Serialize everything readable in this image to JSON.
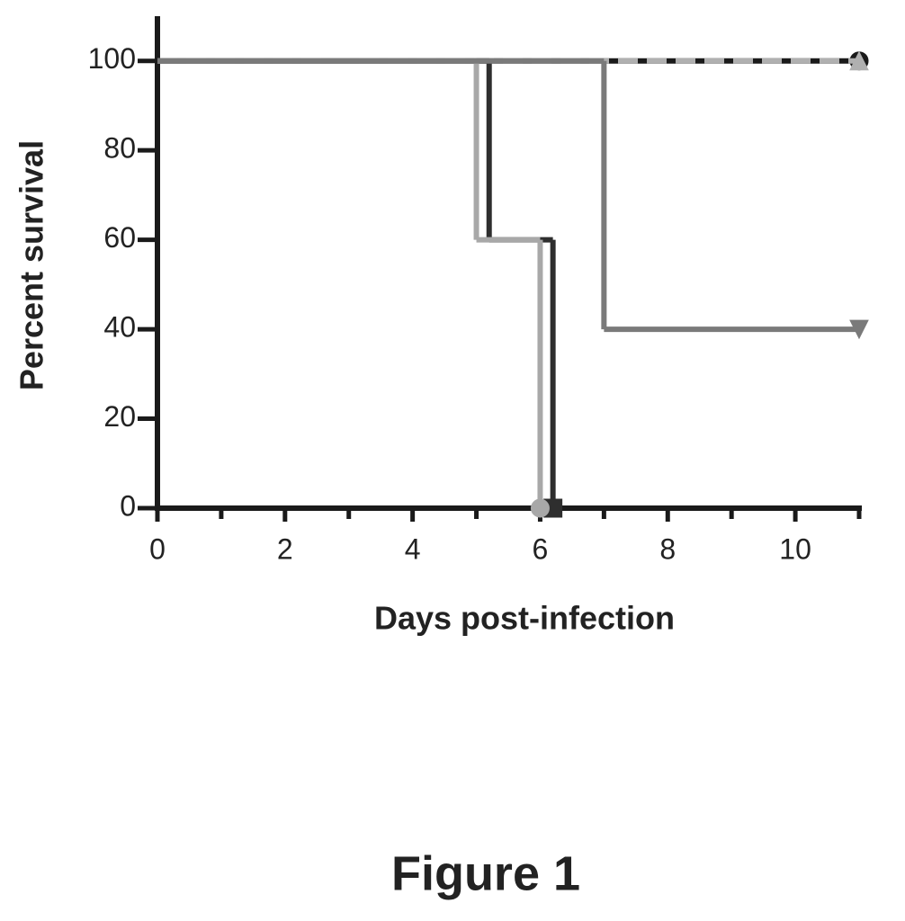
{
  "chart_data": {
    "type": "step",
    "x_label": "Days post-infection",
    "y_label": "Percent survival",
    "caption": "Figure 1",
    "xlim": [
      0,
      11
    ],
    "xticks": [
      0,
      2,
      4,
      6,
      8,
      10
    ],
    "minor_xticks": [
      1,
      3,
      5,
      7,
      9,
      11
    ],
    "ylim": [
      0,
      110
    ],
    "yticks": [
      0,
      20,
      40,
      60,
      80,
      100
    ],
    "series": [
      {
        "color": "#1a1a1a",
        "dashed": false,
        "marker": "circle",
        "x": [
          0,
          11
        ],
        "values": [
          100,
          100
        ]
      },
      {
        "color": "#b0b0b0",
        "dashed": true,
        "marker": "triangle-up",
        "x": [
          0,
          11
        ],
        "values": [
          100,
          100
        ]
      },
      {
        "color": "#2e2e2e",
        "dashed": false,
        "marker": "square",
        "x": [
          0,
          5.2,
          6.2
        ],
        "values": [
          100,
          60,
          0
        ]
      },
      {
        "color": "#a8a8a8",
        "dashed": false,
        "marker": "circle",
        "x": [
          0,
          5,
          6
        ],
        "values": [
          100,
          60,
          0
        ]
      },
      {
        "color": "#7a7a7a",
        "dashed": false,
        "marker": "triangle-down",
        "x": [
          0,
          7,
          11
        ],
        "values": [
          100,
          40,
          40
        ]
      }
    ]
  }
}
